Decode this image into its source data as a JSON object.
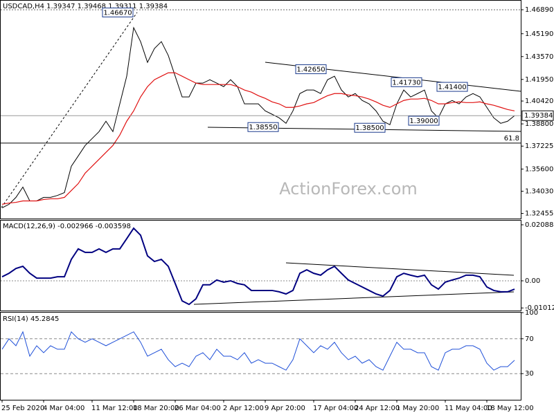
{
  "chart_data": [
    {
      "type": "line",
      "title": "USDCAD,H4  1.39347 1.39468 1.39311 1.39384",
      "ylim": [
        1.3209,
        1.4758
      ],
      "yticks": [
        {
          "value": 1.4689,
          "label": "1.46890"
        },
        {
          "value": 1.4519,
          "label": "1.45190"
        },
        {
          "value": 1.4357,
          "label": "1.43570"
        },
        {
          "value": 1.4195,
          "label": "1.41950"
        },
        {
          "value": 1.4042,
          "label": "1.40420"
        },
        {
          "value": 1.388,
          "label": "1.38800"
        },
        1.37225,
        {
          "value": 1.356,
          "label": "1.35600"
        },
        {
          "value": 1.3403,
          "label": "1.34030"
        },
        1.32455
      ],
      "last_price": 1.39384,
      "series": [
        {
          "color": "#000000",
          "values": [
            1.3285,
            1.331,
            1.3359,
            1.3432,
            1.3334,
            1.3334,
            1.3359,
            1.3359,
            1.3373,
            1.3393,
            1.358,
            1.3653,
            1.3727,
            1.3776,
            1.3825,
            1.3899,
            1.3825,
            1.4022,
            1.4218,
            1.4562,
            1.4463,
            1.4316,
            1.4414,
            1.4463,
            1.4365,
            1.4218,
            1.4071,
            1.4071,
            1.4169,
            1.4169,
            1.4193,
            1.4169,
            1.4144,
            1.4193,
            1.4144,
            1.4022,
            1.4022,
            1.4022,
            1.3972,
            1.3948,
            1.3923,
            1.3884,
            1.3972,
            1.4095,
            1.412,
            1.412,
            1.4095,
            1.4193,
            1.4218,
            1.412,
            1.4071,
            1.4095,
            1.4046,
            1.4022,
            1.3972,
            1.3899,
            1.3874,
            1.4022,
            1.412,
            1.4071,
            1.4095,
            1.412,
            1.3972,
            1.3923,
            1.4022,
            1.4046,
            1.4022,
            1.4071,
            1.4095,
            1.4071,
            1.3997,
            1.3923,
            1.3884,
            1.3899,
            1.3938
          ]
        },
        {
          "color": "#e01010",
          "values": [
            1.331,
            1.3319,
            1.3324,
            1.3334,
            1.3334,
            1.3334,
            1.3344,
            1.3349,
            1.3349,
            1.3359,
            1.3408,
            1.3457,
            1.3531,
            1.358,
            1.3629,
            1.3678,
            1.3727,
            1.3801,
            1.3899,
            1.3972,
            1.4071,
            1.4144,
            1.4193,
            1.4218,
            1.4242,
            1.4242,
            1.4218,
            1.4193,
            1.4169,
            1.4159,
            1.4159,
            1.4159,
            1.4159,
            1.4159,
            1.4144,
            1.412,
            1.4105,
            1.408,
            1.4061,
            1.4036,
            1.4022,
            1.3997,
            1.3997,
            1.4007,
            1.4022,
            1.4031,
            1.4056,
            1.408,
            1.4095,
            1.4095,
            1.4085,
            1.408,
            1.4071,
            1.4056,
            1.4036,
            1.4012,
            1.3997,
            1.4022,
            1.4046,
            1.4056,
            1.4056,
            1.4061,
            1.4046,
            1.4022,
            1.4022,
            1.4031,
            1.4036,
            1.4031,
            1.4031,
            1.4036,
            1.4022,
            1.4012,
            1.3997,
            1.3982,
            1.3972
          ]
        }
      ],
      "annotations": [
        {
          "value": 1.4667,
          "label": "1.46670"
        },
        {
          "value": 1.4265,
          "label": "1.42650"
        },
        {
          "value": 1.4173,
          "label": "1.41730"
        },
        {
          "value": 1.414,
          "label": "1.41400"
        },
        {
          "value": 1.3855,
          "label": "1.38550"
        },
        {
          "value": 1.385,
          "label": "1.38500"
        },
        {
          "value": 1.39,
          "label": "1.39000"
        }
      ],
      "fib": {
        "value": 1.3744,
        "label": "61.8"
      },
      "watermark": "ActionForex.com"
    },
    {
      "type": "line",
      "title": "MACD(12,26,9) -0.002966 -0.003598",
      "ylim": [
        -0.01135,
        0.02269
      ],
      "yticks": [
        0.020884,
        {
          "value": 0,
          "label": "0.00"
        },
        -0.010121
      ],
      "series": [
        {
          "color": "#000080",
          "values": [
            0.0015,
            0.0028,
            0.0046,
            0.0054,
            0.0028,
            0.001,
            0.001,
            0.001,
            0.0015,
            0.0015,
            0.008,
            0.0119,
            0.0106,
            0.0106,
            0.0119,
            0.0106,
            0.0119,
            0.0119,
            0.0157,
            0.0196,
            0.017,
            0.0093,
            0.0072,
            0.008,
            0.0054,
            -0.001,
            -0.0075,
            -0.0088,
            -0.0067,
            -0.0015,
            -0.0015,
            0.0003,
            -0.0005,
            0,
            -0.001,
            -0.0015,
            -0.0036,
            -0.0036,
            -0.0036,
            -0.0036,
            -0.0041,
            -0.0049,
            -0.0036,
            0.0028,
            0.0041,
            0.0028,
            0.0021,
            0.0041,
            0.0054,
            0.0028,
            0.0003,
            -0.001,
            -0.0023,
            -0.0036,
            -0.0049,
            -0.0057,
            -0.0036,
            0.0015,
            0.0028,
            0.0021,
            0.0015,
            0.0021,
            -0.0015,
            -0.0031,
            -0.0005,
            0.0003,
            0.001,
            0.0021,
            0.0021,
            0.0015,
            -0.0023,
            -0.0036,
            -0.0041,
            -0.0041,
            -0.0031
          ]
        }
      ]
    },
    {
      "type": "line",
      "title": "RSI(14) 45.2845",
      "ylim": [
        0,
        100
      ],
      "yticks": [
        100,
        70,
        30
      ],
      "series": [
        {
          "color": "#1e4fd8",
          "values": [
            58,
            70,
            62,
            78,
            50,
            62,
            54,
            62,
            58,
            58,
            78,
            70,
            66,
            70,
            66,
            62,
            66,
            70,
            74,
            78,
            66,
            50,
            54,
            58,
            46,
            38,
            42,
            38,
            50,
            54,
            46,
            58,
            50,
            50,
            46,
            54,
            42,
            46,
            42,
            42,
            38,
            34,
            46,
            70,
            62,
            54,
            62,
            58,
            66,
            54,
            46,
            50,
            42,
            46,
            38,
            34,
            50,
            66,
            58,
            58,
            54,
            54,
            38,
            34,
            54,
            58,
            58,
            62,
            62,
            58,
            42,
            34,
            38,
            38,
            45.3
          ]
        }
      ],
      "categories": [
        "25 Feb 2020",
        null,
        null,
        null,
        null,
        null,
        "4 Mar 04:00",
        null,
        null,
        null,
        null,
        null,
        null,
        "11 Mar 12:00",
        null,
        null,
        null,
        null,
        null,
        "18 Mar 20:00",
        null,
        null,
        null,
        null,
        null,
        "26 Mar 04:00",
        null,
        null,
        null,
        null,
        null,
        null,
        "2 Apr 12:00",
        null,
        null,
        null,
        null,
        null,
        "9 Apr 20:00",
        null,
        null,
        null,
        null,
        null,
        null,
        "17 Apr 04:00",
        null,
        null,
        null,
        null,
        null,
        "24 Apr 12:00",
        null,
        null,
        null,
        null,
        null,
        "1 May 20:00",
        null,
        null,
        null,
        null,
        null,
        null,
        "11 May 04:00",
        null,
        null,
        null,
        null,
        null,
        "18 May 12:00",
        null,
        null,
        null,
        null
      ]
    }
  ]
}
